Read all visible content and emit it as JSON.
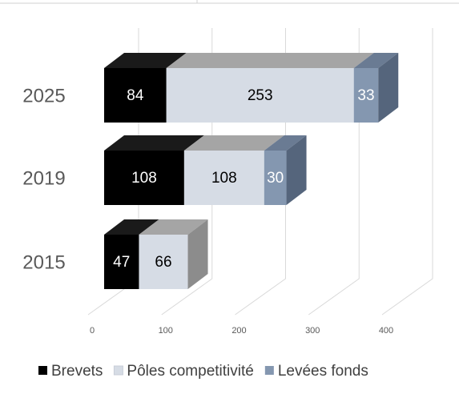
{
  "chart_data": {
    "type": "bar3d_stacked_horizontal",
    "categories": [
      "2025",
      "2019",
      "2015"
    ],
    "series": [
      {
        "name": "Brevets",
        "color": "#000000",
        "top_color": "#1a1a1a",
        "side_color": "#0d0d0d",
        "label_color": "#ffffff",
        "values": [
          84,
          108,
          47
        ]
      },
      {
        "name": "Pôles competitivité",
        "color": "#d6dce5",
        "top_color": "#a5a5a5",
        "side_color": "#8c8c8c",
        "label_color": "#000000",
        "values": [
          253,
          108,
          66
        ]
      },
      {
        "name": "Levées fonds",
        "color": "#8497b0",
        "top_color": "#6a7b93",
        "side_color": "#55657c",
        "label_color": "#ffffff",
        "values": [
          33,
          30,
          null
        ]
      }
    ],
    "xlim": [
      0,
      400
    ],
    "xticks": [
      0,
      100,
      200,
      300,
      400
    ],
    "grid": true,
    "legend": "bottom"
  }
}
